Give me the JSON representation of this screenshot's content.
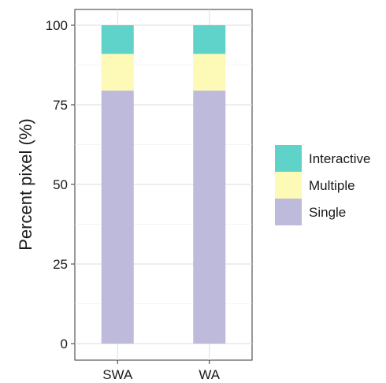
{
  "chart_data": {
    "type": "bar",
    "stacked": true,
    "categories": [
      "SWA",
      "WA"
    ],
    "series": [
      {
        "name": "Single",
        "values": [
          79.5,
          79.5
        ],
        "color": "#bebadb"
      },
      {
        "name": "Multiple",
        "values": [
          11.5,
          11.5
        ],
        "color": "#fdf9b6"
      },
      {
        "name": "Interactive",
        "values": [
          9.0,
          9.0
        ],
        "color": "#5fd3c9"
      }
    ],
    "ylabel": "Percent pixel (%)",
    "xlabel": "",
    "ylim": [
      0,
      100
    ],
    "yticks": [
      0,
      25,
      50,
      75,
      100
    ],
    "grid": true,
    "legend_position": "right",
    "legend_order": [
      "Interactive",
      "Multiple",
      "Single"
    ]
  }
}
